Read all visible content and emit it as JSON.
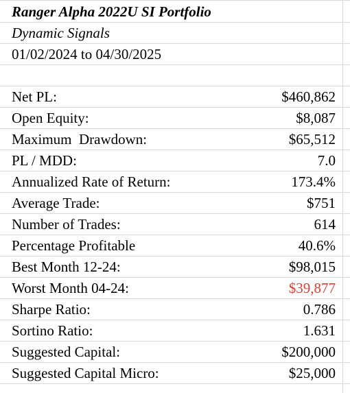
{
  "header": {
    "title": "Ranger Alpha 2022U SI Portfolio",
    "subtitle": "Dynamic Signals",
    "date_range": "01/02/2024 to 04/30/2025"
  },
  "metrics": [
    {
      "label": "Net PL:",
      "value": "$460,862"
    },
    {
      "label": "Open Equity:",
      "value": "$8,087"
    },
    {
      "label": "Maximum  Drawdown:",
      "value": "$65,512"
    },
    {
      "label": "PL / MDD:",
      "value": "7.0"
    },
    {
      "label": "Annualized Rate of Return:",
      "value": "173.4%"
    },
    {
      "label": "Average Trade:",
      "value": "$751"
    },
    {
      "label": "Number of Trades:",
      "value": "614"
    },
    {
      "label": "Percentage Profitable",
      "value": "40.6%"
    },
    {
      "label": "Best Month 12-24:",
      "value": "$98,015"
    },
    {
      "label": "Worst Month 04-24:",
      "value": "$39,877"
    },
    {
      "label": "Sharpe Ratio:",
      "value": "0.786"
    },
    {
      "label": "Sortino Ratio:",
      "value": "1.631"
    },
    {
      "label": "Suggested Capital:",
      "value": "$200,000"
    },
    {
      "label": "Suggested Capital Micro:",
      "value": "$25,000"
    }
  ],
  "colors": {
    "negative_value": "#e03b2e",
    "gridline": "#d9d9d9"
  }
}
